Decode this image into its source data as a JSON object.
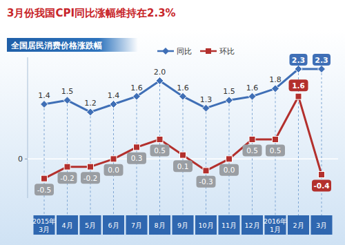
{
  "chart_data": {
    "type": "line",
    "title": "3月份我国CPI同比涨幅维持在2.3%",
    "subtitle": "全国居民消费价格涨跌幅",
    "categories": [
      "2015年3月",
      "4月",
      "5月",
      "6月",
      "7月",
      "8月",
      "9月",
      "10月",
      "11月",
      "12月",
      "2016年1月",
      "2月",
      "3月"
    ],
    "series": [
      {
        "name": "同比",
        "color": "#3f6fb6",
        "marker": "diamond",
        "values": [
          1.4,
          1.5,
          1.2,
          1.4,
          1.6,
          2.0,
          1.6,
          1.3,
          1.5,
          1.6,
          1.8,
          2.3,
          2.3
        ],
        "value_labels": [
          "1.4",
          "1.5",
          "1.2",
          "1.4",
          "1.6",
          "2.0",
          "1.6",
          "1.3",
          "1.5",
          "1.6",
          "1.8",
          "2.3",
          "2.3"
        ]
      },
      {
        "name": "环比",
        "color": "#b3302d",
        "marker": "square",
        "values": [
          -0.5,
          -0.2,
          -0.2,
          0.0,
          0.3,
          0.5,
          0.1,
          -0.3,
          0.0,
          0.5,
          0.5,
          1.6,
          -0.4
        ],
        "value_labels": [
          "-0.5",
          "-0.2",
          "-0.2",
          "0.0",
          "0.3",
          "0.5",
          "0.1",
          "-0.3",
          "0.0",
          "0.5",
          "0.5",
          "1.6",
          "-0.4"
        ]
      }
    ],
    "ylim": [
      -1.0,
      2.6
    ],
    "yticks": [
      0
    ],
    "grid": true,
    "data_labels": true,
    "legend": "top"
  }
}
